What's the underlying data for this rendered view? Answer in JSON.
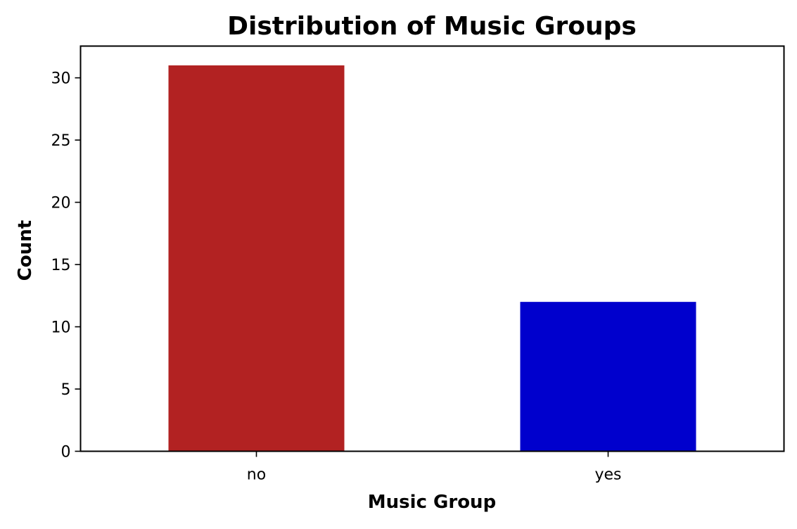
{
  "chart_data": {
    "type": "bar",
    "title": "Distribution of Music Groups",
    "xlabel": "Music Group",
    "ylabel": "Count",
    "categories": [
      "no",
      "yes"
    ],
    "values": [
      31,
      12
    ],
    "colors": [
      "#b22222",
      "#0000cd"
    ],
    "ylim": [
      0,
      32.55
    ],
    "yticks": [
      0,
      5,
      10,
      15,
      20,
      25,
      30
    ],
    "grid": false,
    "legend": "none"
  }
}
